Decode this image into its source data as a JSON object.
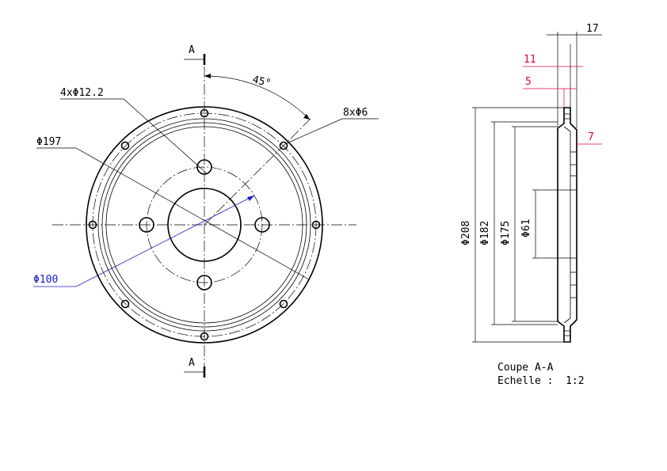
{
  "drawing": {
    "front_view": {
      "section_marker_top": "A",
      "section_marker_bottom": "A",
      "angle_label": "45°",
      "hole_pattern_large": "4xΦ12.2",
      "hole_pattern_small": "8xΦ6",
      "outer_diameter": "Φ197",
      "bolt_circle_diameter": "Φ100"
    },
    "section_view": {
      "dim_overall_thickness": "17",
      "dim_11": "11",
      "dim_5": "5",
      "dim_7": "7",
      "dia_208": "Φ208",
      "dia_182": "Φ182",
      "dia_175": "Φ175",
      "dia_61": "Φ61"
    },
    "caption": {
      "line1": "Coupe A-A",
      "line2": "Echelle :  1:2"
    },
    "colors": {
      "red_dimension": "#e0003c",
      "blue_dimension": "#1a1acc",
      "line": "#000000"
    }
  }
}
